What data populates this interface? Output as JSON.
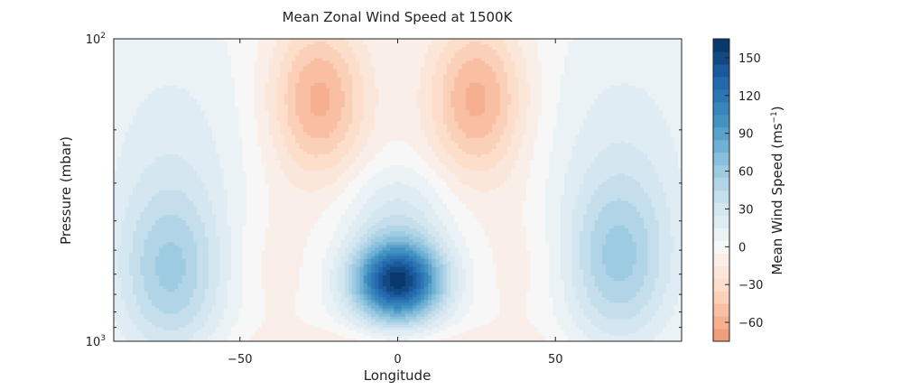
{
  "chart_data": {
    "type": "contour",
    "title": "Mean Zonal Wind Speed at 1500K",
    "xlabel": "Longitude",
    "ylabel": "Pressure (mbar)",
    "xlim": [
      -90,
      90
    ],
    "ylim": [
      1000,
      100
    ],
    "yscale": "log",
    "x_ticks": [
      "−50",
      "0",
      "50"
    ],
    "x_tick_values": [
      -50,
      0,
      50
    ],
    "y_ticks": [
      {
        "base": "10",
        "exp": "2",
        "value": 100
      },
      {
        "base": "10",
        "exp": "3",
        "value": 1000
      }
    ],
    "colorbar": {
      "label": "Mean Wind Speed (ms",
      "label_exp": "−1",
      "label_tail": ")",
      "levels": [
        -75,
        -65,
        -55,
        -45,
        -35,
        -25,
        -15,
        -5,
        5,
        15,
        25,
        35,
        45,
        55,
        65,
        75,
        85,
        95,
        105,
        115,
        125,
        135,
        145,
        155,
        165
      ],
      "ticks": [
        "−60",
        "−30",
        "0",
        "30",
        "60",
        "90",
        "120",
        "150"
      ],
      "tick_values": [
        -60,
        -30,
        0,
        30,
        60,
        90,
        120,
        150
      ],
      "colormap": "RdBu_r"
    },
    "grid": false,
    "features": [
      {
        "type": "jet",
        "name": "equatorial superrotating jet",
        "lon": 0,
        "pressure_mbar": 650,
        "peak": 160
      },
      {
        "type": "retrograde",
        "lon": -25,
        "pressure_mbar": 160,
        "peak": -60
      },
      {
        "type": "retrograde",
        "lon": 25,
        "pressure_mbar": 160,
        "peak": -60
      },
      {
        "type": "prograde",
        "lon": -72,
        "pressure_mbar": 650,
        "peak": 60
      },
      {
        "type": "prograde",
        "lon": 70,
        "pressure_mbar": 600,
        "peak": 60
      }
    ]
  },
  "colors": {
    "max_blue": "#053061",
    "min_red": "#e58367",
    "neutral": "#f7f7f7"
  }
}
